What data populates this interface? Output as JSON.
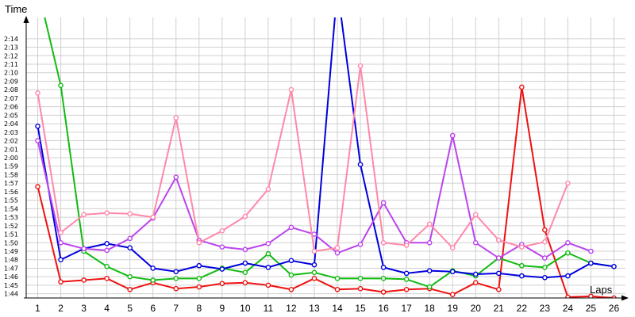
{
  "chart_data": {
    "type": "line",
    "xlabel": "Laps",
    "ylabel": "Time",
    "grid": true,
    "xlim": [
      0.5,
      26.5
    ],
    "ylim": [
      103.5,
      136.5
    ],
    "x": [
      1,
      2,
      3,
      4,
      5,
      6,
      7,
      8,
      9,
      10,
      11,
      12,
      13,
      14,
      15,
      16,
      17,
      18,
      19,
      20,
      21,
      22,
      23,
      24,
      25,
      26
    ],
    "y_tick_labels": [
      "1:44",
      "1:45",
      "1:46",
      "1:47",
      "1:48",
      "1:49",
      "1:50",
      "1:51",
      "1:52",
      "1:53",
      "1:54",
      "1:55",
      "1:56",
      "1:57",
      "1:58",
      "1:59",
      "2:00",
      "2:01",
      "2:02",
      "2:03",
      "2:04",
      "2:05",
      "2:06",
      "2:07",
      "2:08",
      "2:09",
      "2:10",
      "2:11",
      "2:12",
      "2:13",
      "2:14"
    ],
    "y_tick_values": [
      104,
      105,
      106,
      107,
      108,
      109,
      110,
      111,
      112,
      113,
      114,
      115,
      116,
      117,
      118,
      119,
      120,
      121,
      122,
      123,
      124,
      125,
      126,
      127,
      128,
      129,
      130,
      131,
      132,
      133,
      134
    ],
    "series": [
      {
        "color": "#ee1111",
        "values": [
          116.6,
          105.4,
          105.6,
          105.8,
          104.5,
          105.3,
          104.6,
          104.8,
          105.2,
          105.3,
          105.0,
          104.5,
          105.8,
          104.5,
          104.6,
          104.2,
          104.5,
          104.6,
          103.9,
          105.3,
          104.5,
          128.3,
          111.5,
          103.6,
          103.7,
          103.5
        ]
      },
      {
        "color": "#11bb11",
        "values": [
          140,
          128.5,
          109.0,
          107.2,
          106.0,
          105.6,
          105.8,
          105.8,
          107.0,
          106.5,
          108.7,
          106.2,
          106.5,
          105.8,
          105.8,
          105.8,
          105.7,
          104.8,
          106.7,
          106.1,
          108.2,
          107.3,
          107.1,
          108.8,
          107.6,
          107.2
        ]
      },
      {
        "color": "#0000dd",
        "values": [
          123.7,
          108.0,
          109.3,
          109.9,
          109.4,
          107.0,
          106.6,
          107.3,
          106.9,
          107.6,
          107.1,
          107.9,
          107.4,
          140,
          119.2,
          107.1,
          106.4,
          106.7,
          106.6,
          106.3,
          106.4,
          106.1,
          105.9,
          106.1,
          107.6,
          107.2
        ]
      },
      {
        "color": "#bb44ee",
        "values": [
          122.0,
          110.0,
          109.3,
          109.1,
          110.5,
          112.9,
          117.7,
          110.3,
          109.5,
          109.2,
          109.9,
          111.8,
          111.0,
          108.8,
          109.8,
          114.7,
          110.0,
          110.0,
          122.6,
          110.0,
          108.2,
          109.8,
          108.2,
          110.0,
          109.0,
          null
        ]
      },
      {
        "color": "#ff88aa",
        "values": [
          127.6,
          111.2,
          113.3,
          113.5,
          113.4,
          113.0,
          124.7,
          110.0,
          111.4,
          113.1,
          116.3,
          128.0,
          109.0,
          109.4,
          130.8,
          110.0,
          109.7,
          112.2,
          109.4,
          113.3,
          110.3,
          109.5,
          110.1,
          117.0,
          null,
          null
        ]
      }
    ]
  }
}
